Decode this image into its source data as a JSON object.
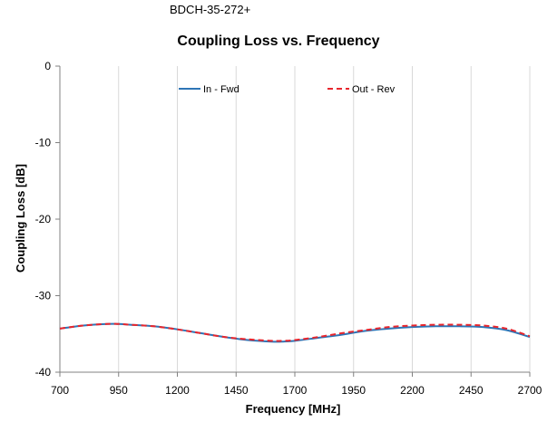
{
  "header": {
    "part_number": "BDCH-35-272+"
  },
  "chart_data": {
    "type": "line",
    "title": "Coupling Loss vs. Frequency",
    "xlabel": "Frequency [MHz]",
    "ylabel": "Coupling Loss [dB]",
    "xlim": [
      700,
      2700
    ],
    "ylim": [
      -40,
      0
    ],
    "xticks": [
      700,
      950,
      1200,
      1450,
      1700,
      1950,
      2200,
      2450,
      2700
    ],
    "yticks": [
      0,
      -10,
      -20,
      -30,
      -40
    ],
    "xtick_labels": [
      "700",
      "950",
      "1200",
      "1450",
      "1700",
      "1950",
      "2200",
      "2450",
      "2700"
    ],
    "ytick_labels": [
      "0",
      "-10",
      "-20",
      "-30",
      "-40"
    ],
    "grid": "vertical",
    "legend_position": "top",
    "x": [
      700,
      800,
      900,
      950,
      1000,
      1100,
      1200,
      1300,
      1400,
      1500,
      1600,
      1650,
      1700,
      1800,
      1900,
      2000,
      2100,
      2200,
      2300,
      2400,
      2500,
      2600,
      2700
    ],
    "series": [
      {
        "name": "In - Fwd",
        "color": "#2e75b6",
        "style": "solid",
        "values": [
          -34.3,
          -33.9,
          -33.7,
          -33.7,
          -33.8,
          -34.0,
          -34.4,
          -34.9,
          -35.4,
          -35.8,
          -36.0,
          -36.0,
          -35.9,
          -35.5,
          -35.1,
          -34.6,
          -34.3,
          -34.1,
          -34.0,
          -34.0,
          -34.1,
          -34.5,
          -35.4
        ]
      },
      {
        "name": "Out - Rev",
        "color": "#e8262d",
        "style": "dashed",
        "values": [
          -34.3,
          -33.9,
          -33.7,
          -33.7,
          -33.8,
          -34.0,
          -34.4,
          -34.9,
          -35.4,
          -35.7,
          -35.9,
          -35.9,
          -35.8,
          -35.4,
          -34.9,
          -34.5,
          -34.1,
          -33.9,
          -33.8,
          -33.8,
          -33.9,
          -34.3,
          -35.3
        ]
      }
    ]
  }
}
